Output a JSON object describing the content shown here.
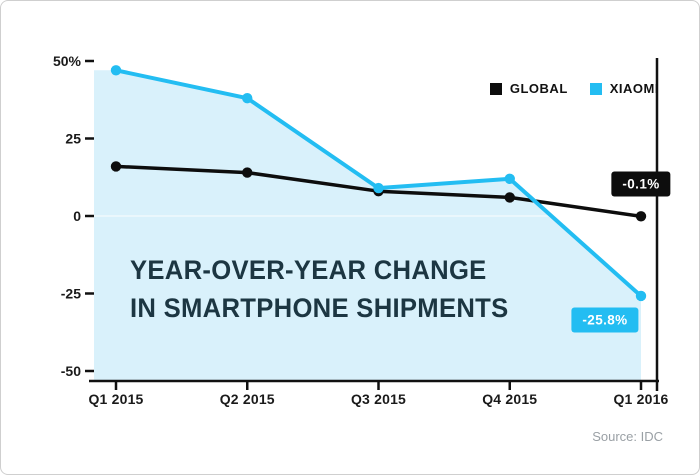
{
  "chart_data": {
    "type": "line",
    "title_lines": [
      "YEAR-OVER-YEAR CHANGE",
      "IN SMARTPHONE SHIPMENTS"
    ],
    "title_color": "#1c3642",
    "categories": [
      "Q1 2015",
      "Q2 2015",
      "Q3 2015",
      "Q4 2015",
      "Q1 2016"
    ],
    "series": [
      {
        "name": "GLOBAL",
        "color": "#0d0d0d",
        "values": [
          16,
          14,
          8,
          6,
          -0.1
        ]
      },
      {
        "name": "XIAOMI",
        "color": "#23bdf2",
        "area_fill": "#d9f1fb",
        "values": [
          47,
          38,
          9,
          12,
          -25.8
        ]
      }
    ],
    "ylim": [
      -50,
      50
    ],
    "yticks": [
      50,
      25,
      0,
      -25,
      -50
    ],
    "ytick_labels": [
      "50%",
      "25",
      "0",
      "-25",
      "-50"
    ],
    "annotations": [
      {
        "text": "-0.1%",
        "series": "GLOBAL"
      },
      {
        "text": "-25.8%",
        "series": "XIAOMI"
      }
    ],
    "legend_position": "top-right",
    "grid": "off",
    "source": "Source: IDC"
  }
}
